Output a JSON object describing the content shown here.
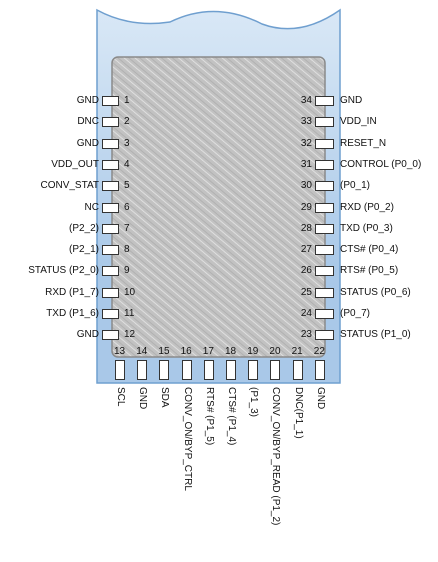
{
  "module": {
    "body_color": "#a9c8e8",
    "body_stroke": "#6f9fcf",
    "shield_color": "#c0c0c0",
    "shield_stroke": "#8a8a8a"
  },
  "left_pins": [
    {
      "num": "1",
      "label": "GND"
    },
    {
      "num": "2",
      "label": "DNC"
    },
    {
      "num": "3",
      "label": "GND"
    },
    {
      "num": "4",
      "label": "VDD_OUT"
    },
    {
      "num": "5",
      "label": "CONV_STAT"
    },
    {
      "num": "6",
      "label": "NC"
    },
    {
      "num": "7",
      "label": "(P2_2)"
    },
    {
      "num": "8",
      "label": "(P2_1)"
    },
    {
      "num": "9",
      "label": "STATUS (P2_0)"
    },
    {
      "num": "10",
      "label": "RXD (P1_7)"
    },
    {
      "num": "11",
      "label": "TXD (P1_6)"
    },
    {
      "num": "12",
      "label": "GND"
    }
  ],
  "right_pins": [
    {
      "num": "34",
      "label": "GND"
    },
    {
      "num": "33",
      "label": "VDD_IN"
    },
    {
      "num": "32",
      "label": "RESET_N"
    },
    {
      "num": "31",
      "label": "CONTROL (P0_0)"
    },
    {
      "num": "30",
      "label": "(P0_1)"
    },
    {
      "num": "29",
      "label": "RXD (P0_2)"
    },
    {
      "num": "28",
      "label": "TXD (P0_3)"
    },
    {
      "num": "27",
      "label": "CTS# (P0_4)"
    },
    {
      "num": "26",
      "label": "RTS# (P0_5)"
    },
    {
      "num": "25",
      "label": "STATUS (P0_6)"
    },
    {
      "num": "24",
      "label": "(P0_7)"
    },
    {
      "num": "23",
      "label": "STATUS (P1_0)"
    }
  ],
  "bottom_pins": [
    {
      "num": "13",
      "label": "SCL"
    },
    {
      "num": "14",
      "label": "GND"
    },
    {
      "num": "15",
      "label": "SDA"
    },
    {
      "num": "16",
      "label": "CONV_ON/BYP_CTRL"
    },
    {
      "num": "17",
      "label": "RTS# (P1_5)"
    },
    {
      "num": "18",
      "label": "CTS# (P1_4)"
    },
    {
      "num": "19",
      "label": "(P1_3)"
    },
    {
      "num": "20",
      "label": "CONV_ON/BYP_READ (P1_2)"
    },
    {
      "num": "21",
      "label": "DNC(P1_1)"
    },
    {
      "num": "22",
      "label": "GND"
    }
  ]
}
